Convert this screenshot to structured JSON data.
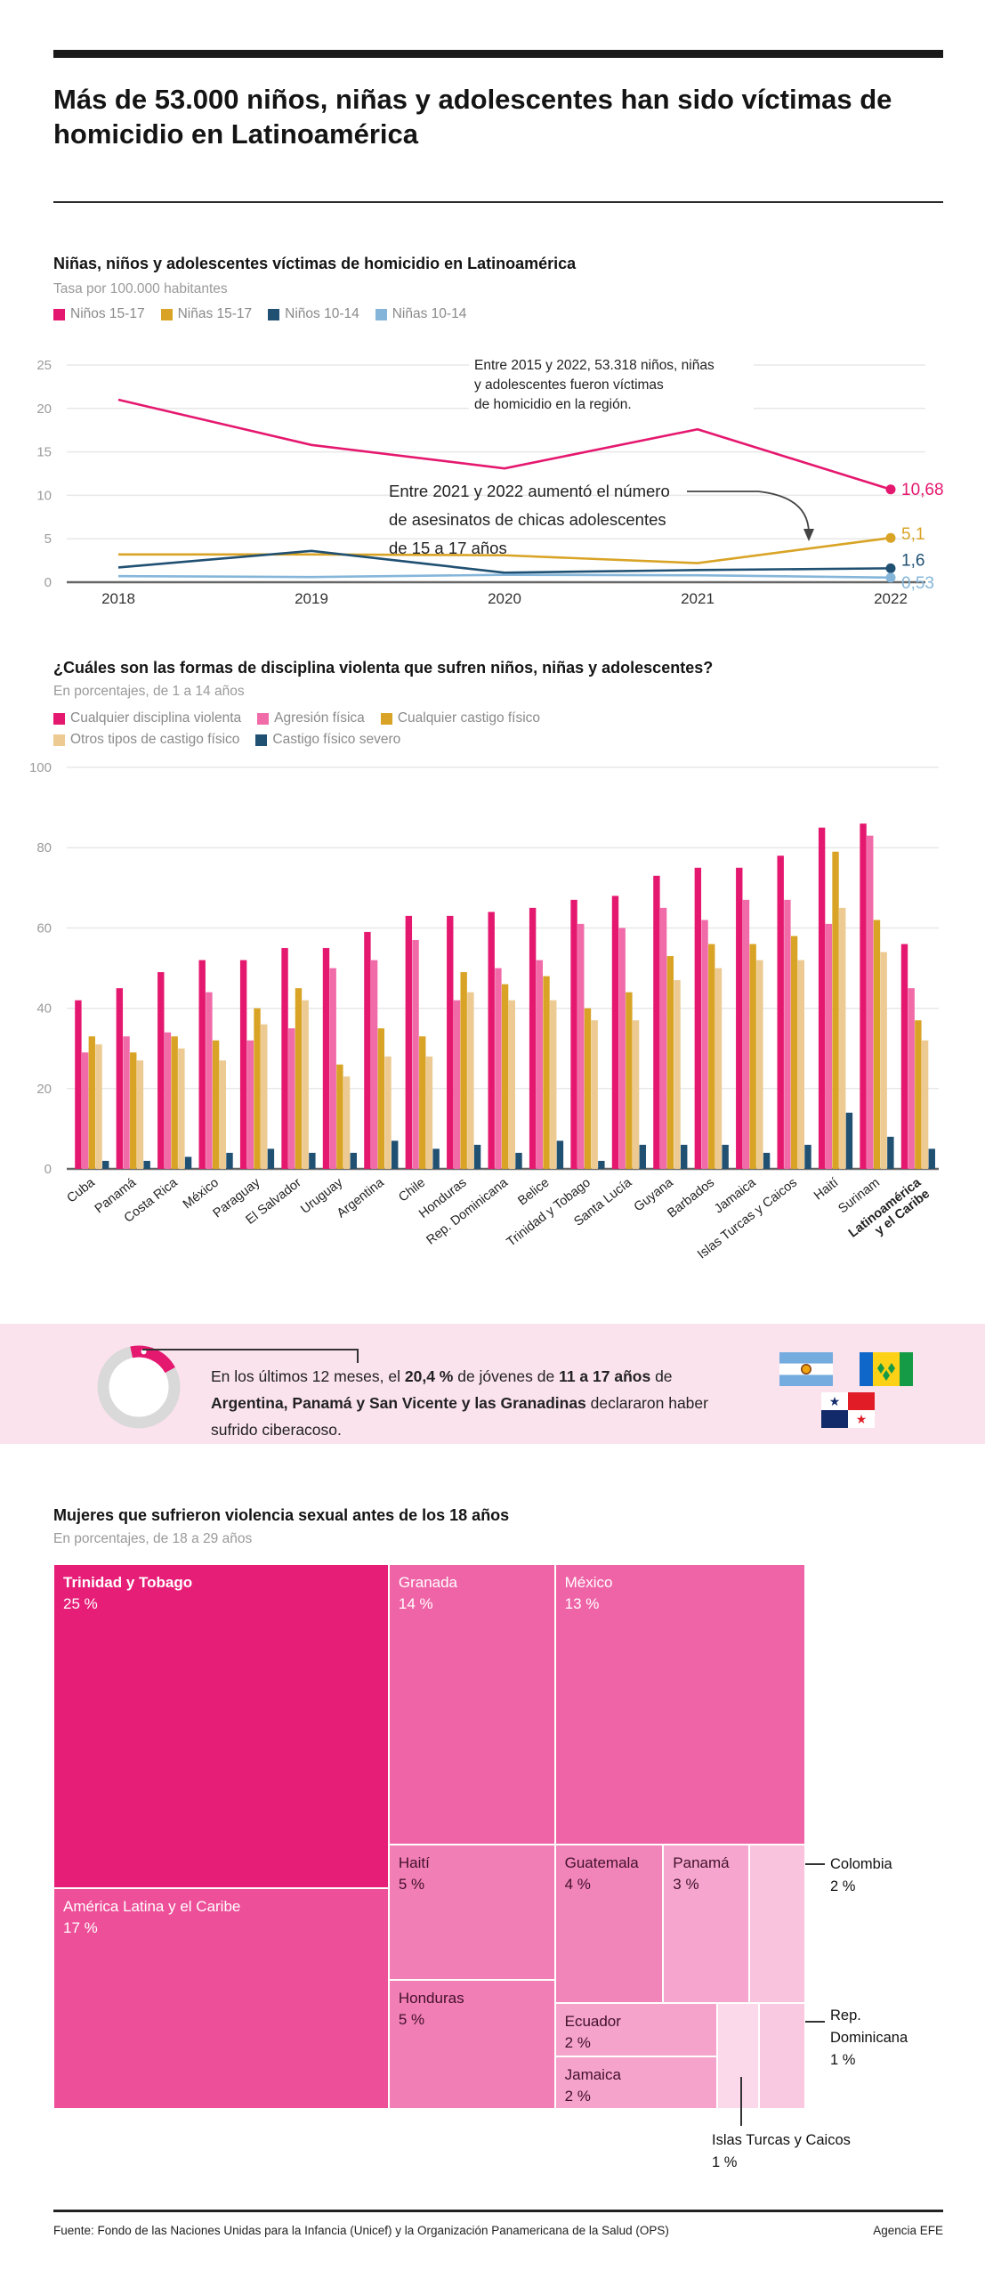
{
  "page": {
    "title": "Más de 53.000 niños, niñas y adolescentes han sido víctimas de homicidio en Latinoamérica"
  },
  "section1": {
    "title": "Niñas, niños y adolescentes víctimas de homicidio en Latinoamérica",
    "subtitle": "Tasa por 100.000 habitantes",
    "legend": [
      {
        "label": "Niños 15-17",
        "color": "#e5186f"
      },
      {
        "label": "Niñas 15-17",
        "color": "#d9a426"
      },
      {
        "label": "Niños 10-14",
        "color": "#205072"
      },
      {
        "label": "Niñas 10-14",
        "color": "#85b6da"
      }
    ]
  },
  "section2": {
    "title": "¿Cuáles son las formas de disciplina violenta que sufren niños, niñas y adolescentes?",
    "subtitle": "En porcentajes, de 1 a 14 años",
    "legend_row1": [
      {
        "label": "Cualquier disciplina violenta",
        "color": "#e5186f"
      },
      {
        "label": "Agresión física",
        "color": "#f06ba8"
      },
      {
        "label": "Cualquier castigo físico",
        "color": "#d9a426"
      }
    ],
    "legend_row2": [
      {
        "label": "Otros tipos de castigo físico",
        "color": "#ecca92"
      },
      {
        "label": "Castigo físico severo",
        "color": "#205072"
      }
    ]
  },
  "cyber": {
    "text_runs": [
      [
        "En los últimos 12 meses, el ",
        false
      ],
      [
        "20,4 %",
        true
      ],
      [
        " de jóvenes de ",
        false
      ],
      [
        "11 a 17 años",
        true
      ],
      [
        " de ",
        false
      ],
      [
        "Argentina, Panamá y San Vicente y las Granadinas",
        true
      ],
      [
        " declararon haber sufrido ciberacoso.",
        false
      ]
    ],
    "flags": [
      "argentina",
      "san-vicente-y-las-granadinas",
      "panama"
    ]
  },
  "section3": {
    "title": "Mujeres que sufrieron violencia sexual antes de los 18 años",
    "subtitle": "En porcentajes, de 18 a 29 años"
  },
  "footer": {
    "source": "Fuente: Fondo de las Naciones Unidas para la Infancia (Unicef) y la Organización Panamericana de la Salud (OPS)",
    "agency": "Agencia EFE"
  },
  "chart_data": [
    {
      "type": "line",
      "title": "Niñas, niños y adolescentes víctimas de homicidio en Latinoamérica",
      "ylabel": "Tasa por 100.000 habitantes",
      "x": [
        2018,
        2019,
        2020,
        2021,
        2022
      ],
      "ylim": [
        0,
        25
      ],
      "yticks": [
        0,
        5,
        10,
        15,
        20,
        25
      ],
      "legend_position": "top",
      "grid": true,
      "series": [
        {
          "name": "Niños 15-17",
          "color": "#e5186f",
          "values": [
            21,
            15.8,
            13.1,
            17.6,
            10.68
          ],
          "end_label": "10,68",
          "label_dy": 6
        },
        {
          "name": "Niñas 15-17",
          "color": "#d9a426",
          "values": [
            3.2,
            3.2,
            3.1,
            2.2,
            5.1
          ],
          "end_label": "5,1",
          "label_dy": 2
        },
        {
          "name": "Niños 10-14",
          "color": "#205072",
          "values": [
            1.7,
            3.6,
            1.1,
            1.4,
            1.6
          ],
          "end_label": "1,6",
          "label_dy": -3
        },
        {
          "name": "Niñas 10-14",
          "color": "#85b6da",
          "values": [
            0.7,
            0.6,
            0.85,
            0.8,
            0.53
          ],
          "end_label": "0,53",
          "label_dy": 12
        }
      ],
      "annotations": [
        {
          "lines": [
            "Entre 2015 y 2022, 53.318 niños, niñas",
            "y adolescentes fueron víctimas",
            "de homicidio en la región."
          ],
          "x": 533,
          "y": 35,
          "size": 15.5,
          "lh": 22,
          "bg": true
        },
        {
          "lines": [
            "Entre 2021 y 2022 aumentó el número",
            "de asesinatos de chicas adolescentes",
            "de 15 a 17 años"
          ],
          "x": 437,
          "y": 178,
          "size": 18.5,
          "lh": 32,
          "bg": false
        }
      ]
    },
    {
      "type": "bar",
      "title": "¿Cuáles son las formas de disciplina violenta que sufren niños, niñas y adolescentes?",
      "ylabel": "En porcentajes, de 1 a 14 años",
      "ylim": [
        0,
        100
      ],
      "yticks": [
        0,
        20,
        40,
        60,
        80,
        100
      ],
      "grid": true,
      "categories": [
        "Cuba",
        "Panamá",
        "Costa Rica",
        "México",
        "Paraguay",
        "El Salvador",
        "Uruguay",
        "Argentina",
        "Chile",
        "Honduras",
        "Rep. Dominicana",
        "Belice",
        "Trinidad y Tobago",
        "Santa Lucía",
        "Guyana",
        "Barbados",
        "Jamaica",
        "Islas Turcas y Caicos",
        "Haití",
        "Surinam",
        "Latinoamérica y el Caribe"
      ],
      "last_category_bold_lines": [
        "Latinoamérica",
        "y el Caribe"
      ],
      "series": [
        {
          "name": "Cualquier disciplina violenta",
          "color": "#e5186f",
          "values": [
            42,
            45,
            49,
            52,
            52,
            55,
            55,
            59,
            63,
            63,
            64,
            65,
            67,
            68,
            73,
            75,
            75,
            78,
            85,
            86,
            56
          ]
        },
        {
          "name": "Agresión física",
          "color": "#f06ba8",
          "values": [
            29,
            33,
            34,
            44,
            32,
            35,
            50,
            52,
            57,
            42,
            50,
            52,
            61,
            60,
            65,
            62,
            67,
            67,
            61,
            83,
            45
          ]
        },
        {
          "name": "Cualquier castigo físico",
          "color": "#d9a426",
          "values": [
            33,
            29,
            33,
            32,
            40,
            45,
            26,
            35,
            33,
            49,
            46,
            48,
            40,
            44,
            53,
            56,
            56,
            58,
            79,
            62,
            37
          ]
        },
        {
          "name": "Otros tipos de castigo físico",
          "color": "#ecca92",
          "values": [
            31,
            27,
            30,
            27,
            36,
            42,
            23,
            28,
            28,
            44,
            42,
            42,
            37,
            37,
            47,
            50,
            52,
            52,
            65,
            54,
            32
          ]
        },
        {
          "name": "Castigo físico severo",
          "color": "#205072",
          "values": [
            2,
            2,
            3,
            4,
            5,
            4,
            4,
            7,
            5,
            6,
            4,
            7,
            2,
            6,
            6,
            6,
            4,
            6,
            14,
            8,
            5
          ]
        }
      ]
    },
    {
      "type": "donut",
      "value_pct": 20.4,
      "label": "20,4 %",
      "color": "#e5186f",
      "track_color": "#d9d9d9"
    },
    {
      "type": "treemap",
      "title": "Mujeres que sufrieron violencia sexual antes de los 18 años",
      "unit": "%",
      "nodes": [
        {
          "name": "Trinidad y Tobago",
          "value": 25,
          "value_label": "25 %",
          "color": "#e71e77",
          "text": "light",
          "x": 0,
          "y": 0,
          "w": 0.446,
          "h": 0.595
        },
        {
          "name": "América Latina y el Caribe",
          "value": 17,
          "value_label": "17 %",
          "color": "#ed4f98",
          "text": "light",
          "x": 0,
          "y": 0.595,
          "w": 0.446,
          "h": 0.405
        },
        {
          "name": "Granada",
          "value": 14,
          "value_label": "14 %",
          "color": "#ef64a7",
          "text": "light",
          "x": 0.446,
          "y": 0,
          "w": 0.221,
          "h": 0.515
        },
        {
          "name": "Haití",
          "value": 5,
          "value_label": "5 %",
          "color": "#f27eb6",
          "text": "dark",
          "x": 0.446,
          "y": 0.515,
          "w": 0.221,
          "h": 0.248
        },
        {
          "name": "Honduras",
          "value": 5,
          "value_label": "5 %",
          "color": "#f27eb6",
          "text": "dark",
          "x": 0.446,
          "y": 0.763,
          "w": 0.221,
          "h": 0.237
        },
        {
          "name": "México",
          "value": 13,
          "value_label": "13 %",
          "color": "#ef64a7",
          "text": "light",
          "x": 0.667,
          "y": 0,
          "w": 0.333,
          "h": 0.515
        },
        {
          "name": "Guatemala",
          "value": 4,
          "value_label": "4 %",
          "color": "#f185ba",
          "text": "dark",
          "x": 0.667,
          "y": 0.515,
          "w": 0.144,
          "h": 0.291
        },
        {
          "name": "Panamá",
          "value": 3,
          "value_label": "3 %",
          "color": "#f6a6ce",
          "text": "dark",
          "x": 0.811,
          "y": 0.515,
          "w": 0.115,
          "h": 0.291
        },
        {
          "name": "Colombia",
          "value": 2,
          "value_label": "2 %",
          "color": "#f9c2dd",
          "text": "none",
          "x": 0.926,
          "y": 0.515,
          "w": 0.074,
          "h": 0.291
        },
        {
          "name": "Ecuador",
          "value": 2,
          "value_label": "2 %",
          "color": "#f5a3cb",
          "text": "dark",
          "x": 0.667,
          "y": 0.806,
          "w": 0.216,
          "h": 0.097
        },
        {
          "name": "Jamaica",
          "value": 2,
          "value_label": "2 %",
          "color": "#f5a3cb",
          "text": "dark",
          "x": 0.667,
          "y": 0.903,
          "w": 0.216,
          "h": 0.097
        },
        {
          "name": "Islas Turcas y Caicos",
          "value": 1,
          "value_label": "1 %",
          "color": "#fcd9ea",
          "text": "none",
          "x": 0.883,
          "y": 0.806,
          "w": 0.056,
          "h": 0.194
        },
        {
          "name": "Rep. Dominicana",
          "value": 1,
          "value_label": "1 %",
          "color": "#f9c9e1",
          "text": "none",
          "x": 0.939,
          "y": 0.806,
          "w": 0.061,
          "h": 0.194
        }
      ],
      "callouts": {
        "colombia": {
          "lines": [
            "Colombia",
            "2 %"
          ]
        },
        "rep_dominicana": {
          "lines": [
            "Rep.",
            "Dominicana",
            "1 %"
          ]
        },
        "islas_turcas": {
          "lines": [
            "Islas Turcas y Caicos",
            "1 %"
          ]
        }
      }
    }
  ]
}
